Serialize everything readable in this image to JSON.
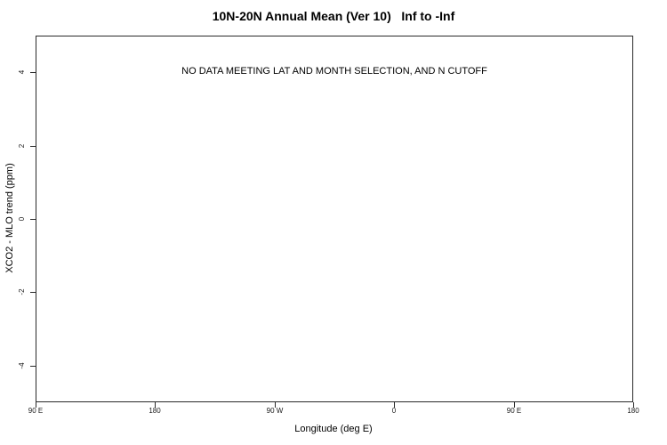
{
  "chart_data": {
    "type": "scatter",
    "title": "10N-20N Annual Mean (Ver 10)   Inf to -Inf",
    "xlabel": "Longitude (deg E)",
    "ylabel": "XCO2 - MLO trend (ppm)",
    "x_tick_labels": [
      "90 E",
      "180",
      "90 W",
      "0",
      "90 E",
      "180"
    ],
    "y_tick_values": [
      4,
      2,
      0,
      -2,
      -4
    ],
    "ylim": [
      -5,
      5
    ],
    "series": [],
    "annotation": "NO DATA MEETING LAT AND MONTH SELECTION, AND N CUTOFF",
    "grid": "off",
    "legend": "none",
    "axis_color": "#2a2a2a",
    "text_color": "#000000",
    "background_color": "#ffffff"
  }
}
